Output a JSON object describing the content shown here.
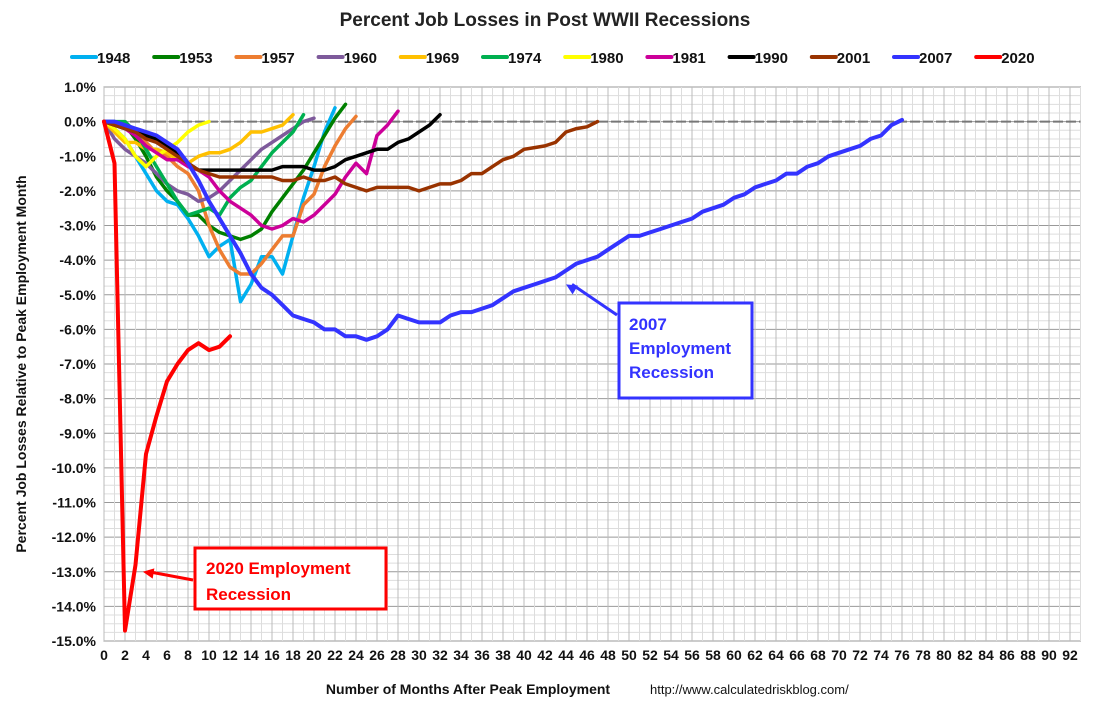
{
  "chart_data": {
    "type": "line",
    "title": "Percent Job Losses in Post WWII Recessions",
    "xlabel": "Number of Months After Peak Employment",
    "ylabel": "Percent Job Losses Relative to Peak Employment Month",
    "source": "http://www.calculatedriskblog.com/",
    "xlim": [
      0,
      93
    ],
    "ylim": [
      -15,
      1
    ],
    "x_ticks": [
      0,
      2,
      4,
      6,
      8,
      10,
      12,
      14,
      16,
      18,
      20,
      22,
      24,
      26,
      28,
      30,
      32,
      34,
      36,
      38,
      40,
      42,
      44,
      46,
      48,
      50,
      52,
      54,
      56,
      58,
      60,
      62,
      64,
      66,
      68,
      70,
      72,
      74,
      76,
      78,
      80,
      82,
      84,
      86,
      88,
      90,
      92
    ],
    "y_ticks": [
      "1.0%",
      "0.0%",
      "-1.0%",
      "-2.0%",
      "-3.0%",
      "-4.0%",
      "-5.0%",
      "-6.0%",
      "-7.0%",
      "-8.0%",
      "-9.0%",
      "-10.0%",
      "-11.0%",
      "-12.0%",
      "-13.0%",
      "-14.0%",
      "-15.0%"
    ],
    "grid": true,
    "legend_placement": "top",
    "series": [
      {
        "name": "1948",
        "color": "#00B0F0",
        "values": [
          0,
          -0.2,
          -0.5,
          -1.0,
          -1.5,
          -2.0,
          -2.3,
          -2.4,
          -2.8,
          -3.3,
          -3.9,
          -3.6,
          -3.4,
          -5.2,
          -4.7,
          -3.9,
          -3.9,
          -4.4,
          -3.3,
          -2.2,
          -1.3,
          -0.3,
          0.4
        ]
      },
      {
        "name": "1953",
        "color": "#008000",
        "values": [
          0,
          0,
          -0.1,
          -0.5,
          -1.0,
          -1.6,
          -2.0,
          -2.3,
          -2.7,
          -2.7,
          -3.0,
          -3.2,
          -3.3,
          -3.4,
          -3.3,
          -3.1,
          -2.6,
          -2.2,
          -1.8,
          -1.4,
          -0.9,
          -0.4,
          0.1,
          0.5
        ]
      },
      {
        "name": "1957",
        "color": "#ED7D31",
        "values": [
          0,
          -0.1,
          -0.2,
          -0.3,
          -0.6,
          -0.9,
          -1.0,
          -1.3,
          -1.5,
          -2.0,
          -3.0,
          -3.7,
          -4.2,
          -4.4,
          -4.4,
          -4.1,
          -3.7,
          -3.3,
          -3.3,
          -2.4,
          -2.1,
          -1.3,
          -0.7,
          -0.2,
          0.15
        ]
      },
      {
        "name": "1960",
        "color": "#7E5A9B",
        "values": [
          0,
          -0.5,
          -0.8,
          -1.0,
          -1.2,
          -1.5,
          -1.8,
          -2.0,
          -2.1,
          -2.3,
          -2.2,
          -2.0,
          -1.7,
          -1.4,
          -1.1,
          -0.8,
          -0.6,
          -0.4,
          -0.2,
          0,
          0.1
        ]
      },
      {
        "name": "1969",
        "color": "#FFC000",
        "values": [
          0,
          -0.3,
          -0.6,
          -0.6,
          -0.8,
          -0.8,
          -0.9,
          -1.1,
          -1.2,
          -1.0,
          -0.9,
          -0.9,
          -0.8,
          -0.6,
          -0.3,
          -0.3,
          -0.2,
          -0.1,
          0.2
        ]
      },
      {
        "name": "1974",
        "color": "#00B050",
        "values": [
          0,
          0,
          0,
          -0.3,
          -0.8,
          -1.3,
          -1.8,
          -2.3,
          -2.7,
          -2.6,
          -2.5,
          -2.7,
          -2.2,
          -1.9,
          -1.7,
          -1.3,
          -0.9,
          -0.6,
          -0.3,
          0.2
        ]
      },
      {
        "name": "1980",
        "color": "#FFFF00",
        "values": [
          0,
          -0.2,
          -0.5,
          -1.0,
          -1.3,
          -1.0,
          -0.8,
          -0.6,
          -0.3,
          -0.1,
          0.0
        ]
      },
      {
        "name": "1981",
        "color": "#CC0099",
        "values": [
          0,
          -0.1,
          -0.2,
          -0.4,
          -0.7,
          -0.9,
          -1.1,
          -1.1,
          -1.3,
          -1.4,
          -1.6,
          -2.0,
          -2.3,
          -2.5,
          -2.7,
          -3.0,
          -3.1,
          -3.0,
          -2.8,
          -2.9,
          -2.7,
          -2.4,
          -2.1,
          -1.6,
          -1.2,
          -1.5,
          -0.4,
          -0.1,
          0.3
        ]
      },
      {
        "name": "1990",
        "color": "#000000",
        "values": [
          0,
          -0.1,
          -0.2,
          -0.3,
          -0.4,
          -0.5,
          -0.7,
          -0.9,
          -1.2,
          -1.4,
          -1.4,
          -1.4,
          -1.4,
          -1.4,
          -1.4,
          -1.4,
          -1.4,
          -1.3,
          -1.3,
          -1.3,
          -1.4,
          -1.4,
          -1.3,
          -1.1,
          -1.0,
          -0.9,
          -0.8,
          -0.8,
          -0.6,
          -0.5,
          -0.3,
          -0.1,
          0.2
        ]
      },
      {
        "name": "2001",
        "color": "#993300",
        "values": [
          0,
          -0.1,
          -0.2,
          -0.3,
          -0.5,
          -0.6,
          -0.8,
          -1.0,
          -1.2,
          -1.4,
          -1.5,
          -1.6,
          -1.6,
          -1.6,
          -1.6,
          -1.6,
          -1.6,
          -1.7,
          -1.7,
          -1.6,
          -1.7,
          -1.7,
          -1.6,
          -1.8,
          -1.9,
          -2.0,
          -1.9,
          -1.9,
          -1.9,
          -1.9,
          -2.0,
          -1.9,
          -1.8,
          -1.8,
          -1.7,
          -1.5,
          -1.5,
          -1.3,
          -1.1,
          -1.0,
          -0.8,
          -0.75,
          -0.7,
          -0.6,
          -0.3,
          -0.2,
          -0.15,
          0.0
        ]
      },
      {
        "name": "2007",
        "color": "#3333FF",
        "values": [
          0,
          0,
          -0.1,
          -0.2,
          -0.3,
          -0.4,
          -0.6,
          -0.8,
          -1.2,
          -1.7,
          -2.3,
          -2.8,
          -3.3,
          -3.8,
          -4.4,
          -4.8,
          -5.0,
          -5.3,
          -5.6,
          -5.7,
          -5.8,
          -6.0,
          -6.0,
          -6.2,
          -6.2,
          -6.3,
          -6.2,
          -6.0,
          -5.6,
          -5.7,
          -5.8,
          -5.8,
          -5.8,
          -5.6,
          -5.5,
          -5.5,
          -5.4,
          -5.3,
          -5.1,
          -4.9,
          -4.8,
          -4.7,
          -4.6,
          -4.5,
          -4.3,
          -4.1,
          -4.0,
          -3.9,
          -3.7,
          -3.5,
          -3.3,
          -3.3,
          -3.2,
          -3.1,
          -3.0,
          -2.9,
          -2.8,
          -2.6,
          -2.5,
          -2.4,
          -2.2,
          -2.1,
          -1.9,
          -1.8,
          -1.7,
          -1.5,
          -1.5,
          -1.3,
          -1.2,
          -1.0,
          -0.9,
          -0.8,
          -0.7,
          -0.5,
          -0.4,
          -0.1,
          0.05
        ]
      },
      {
        "name": "2020",
        "color": "#FF0000",
        "values": [
          0,
          -1.2,
          -14.7,
          -12.8,
          -9.6,
          -8.5,
          -7.5,
          -7.0,
          -6.6,
          -6.4,
          -6.6,
          -6.5,
          -6.2
        ]
      }
    ],
    "annotations": [
      {
        "lines": [
          "2007",
          "Employment",
          "Recession"
        ],
        "color": "#3333FF",
        "points_to": {
          "x": 44,
          "y": -4.7
        }
      },
      {
        "lines": [
          "2020 Employment",
          "Recession"
        ],
        "color": "#FF0000",
        "points_to": {
          "x": 3.7,
          "y": -13.0
        }
      }
    ]
  }
}
